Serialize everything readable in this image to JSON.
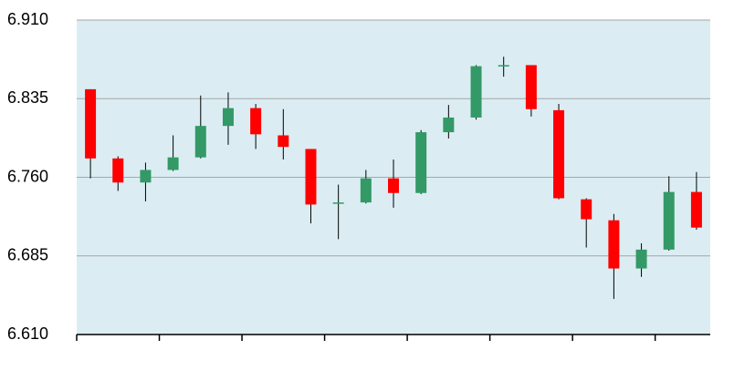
{
  "chart_data": {
    "type": "candlestick",
    "categories": [
      null,
      null,
      null,
      null,
      null,
      null,
      null,
      null,
      null,
      null,
      null,
      null,
      null,
      null,
      null,
      null,
      null,
      null,
      null,
      null,
      null,
      null,
      null
    ],
    "open": [
      6.844,
      6.778,
      6.755,
      6.767,
      6.779,
      6.809,
      6.826,
      6.8,
      6.787,
      6.735,
      6.736,
      6.759,
      6.745,
      6.803,
      6.817,
      6.866,
      6.867,
      6.824,
      6.739,
      6.719,
      6.673,
      6.691,
      6.746
    ],
    "high": [
      6.844,
      6.78,
      6.774,
      6.8,
      6.838,
      6.841,
      6.83,
      6.825,
      6.787,
      6.753,
      6.767,
      6.777,
      6.805,
      6.829,
      6.867,
      6.875,
      6.867,
      6.83,
      6.74,
      6.725,
      6.697,
      6.761,
      6.765
    ],
    "low": [
      6.759,
      6.747,
      6.737,
      6.766,
      6.778,
      6.791,
      6.787,
      6.777,
      6.716,
      6.701,
      6.735,
      6.731,
      6.744,
      6.797,
      6.815,
      6.856,
      6.818,
      6.739,
      6.693,
      6.644,
      6.665,
      6.69,
      6.71
    ],
    "close": [
      6.778,
      6.755,
      6.767,
      6.779,
      6.809,
      6.826,
      6.801,
      6.789,
      6.734,
      6.736,
      6.759,
      6.745,
      6.803,
      6.817,
      6.866,
      6.867,
      6.825,
      6.74,
      6.72,
      6.673,
      6.691,
      6.746,
      6.712
    ],
    "up_color": "#339966",
    "down_color": "#ff0000",
    "background": "#dbedf3",
    "ylim": [
      6.61,
      6.91
    ],
    "yticks": [
      {
        "value": 6.61,
        "label": "6.610"
      },
      6.685,
      {
        "value": 6.76,
        "label": "6.760"
      },
      6.835,
      {
        "value": 6.91,
        "label": "6.910"
      }
    ],
    "grid": true
  }
}
